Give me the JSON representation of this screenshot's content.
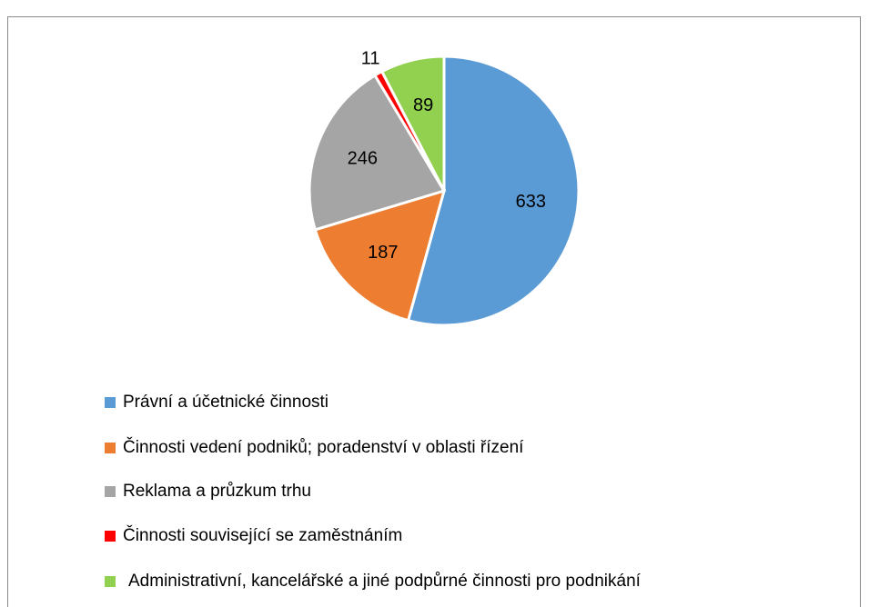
{
  "chart_data": {
    "type": "pie",
    "categories": [
      "Právní a účetnické činnosti",
      "Činnosti vedení podniků; poradenství v oblasti řízení",
      "Reklama a průzkum trhu",
      "Činnosti související se zaměstnáním",
      "Administrativní, kancelářské a jiné podpůrné činnosti pro podnikání"
    ],
    "values": [
      633,
      187,
      246,
      11,
      89
    ],
    "colors": [
      "#5b9bd5",
      "#ed7d31",
      "#a5a5a5",
      "#ff0000",
      "#92d050"
    ]
  }
}
